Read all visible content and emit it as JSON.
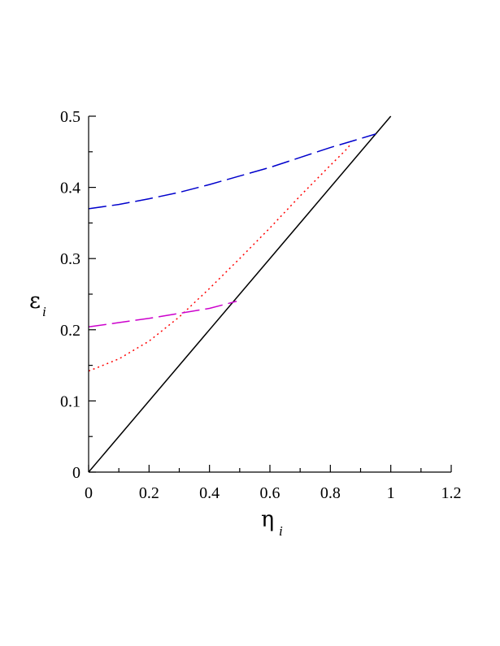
{
  "chart_data": {
    "type": "line",
    "title": "",
    "xlabel": {
      "symbol": "η",
      "subscript": "i"
    },
    "ylabel": {
      "symbol": "ε",
      "subscript": "i"
    },
    "xlim": [
      0,
      1.2
    ],
    "ylim": [
      0,
      0.5
    ],
    "x_ticks": [
      "0",
      "0.2",
      "0.4",
      "0.6",
      "0.8",
      "1",
      "1.2"
    ],
    "y_ticks": [
      "0",
      "0.1",
      "0.2",
      "0.3",
      "0.4",
      "0.5"
    ],
    "grid": false,
    "legend": "none",
    "series": [
      {
        "style": "solid",
        "color": "#000000",
        "points": [
          [
            0,
            0
          ],
          [
            1.0,
            0.5
          ]
        ]
      },
      {
        "style": "longdash",
        "color": "#0000cc",
        "points": [
          [
            0,
            0.37
          ],
          [
            0.1,
            0.376
          ],
          [
            0.2,
            0.384
          ],
          [
            0.3,
            0.393
          ],
          [
            0.4,
            0.404
          ],
          [
            0.5,
            0.416
          ],
          [
            0.6,
            0.428
          ],
          [
            0.7,
            0.442
          ],
          [
            0.8,
            0.456
          ],
          [
            0.88,
            0.466
          ],
          [
            0.95,
            0.475
          ]
        ]
      },
      {
        "style": "dotted",
        "color": "#ff0000",
        "points": [
          [
            0,
            0.142
          ],
          [
            0.1,
            0.159
          ],
          [
            0.2,
            0.184
          ],
          [
            0.3,
            0.218
          ],
          [
            0.4,
            0.258
          ],
          [
            0.5,
            0.3
          ],
          [
            0.6,
            0.343
          ],
          [
            0.7,
            0.388
          ],
          [
            0.8,
            0.431
          ],
          [
            0.85,
            0.452
          ],
          [
            0.87,
            0.462
          ]
        ]
      },
      {
        "style": "longdash",
        "color": "#cc00cc",
        "points": [
          [
            0,
            0.204
          ],
          [
            0.1,
            0.21
          ],
          [
            0.2,
            0.216
          ],
          [
            0.3,
            0.223
          ],
          [
            0.4,
            0.23
          ],
          [
            0.49,
            0.24
          ]
        ]
      }
    ]
  }
}
